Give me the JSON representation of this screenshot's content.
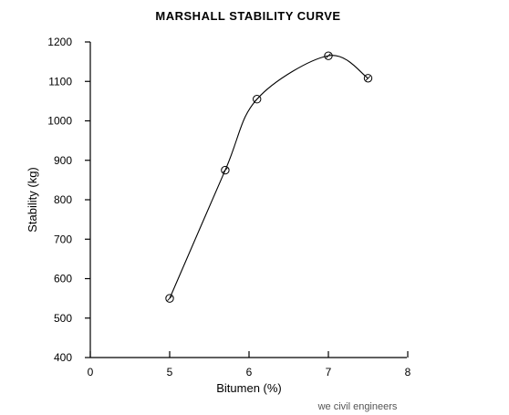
{
  "chart_data": {
    "type": "line",
    "title": "MARSHALL STABILITY CURVE",
    "xlabel": "Bitumen (%)",
    "ylabel": "Stability (kg)",
    "xlim": [
      4,
      8
    ],
    "ylim": [
      400,
      1200
    ],
    "x_ticks": [
      0,
      5,
      6,
      7,
      8
    ],
    "y_ticks": [
      400,
      500,
      600,
      700,
      800,
      900,
      1000,
      1100,
      1200
    ],
    "x_axis_break": true,
    "grid": false,
    "legend": "none",
    "series": [
      {
        "x": [
          5.0,
          5.7,
          6.1,
          7.0,
          7.5
        ],
        "y": [
          550,
          875,
          1055,
          1165,
          1108
        ],
        "marker": "circle",
        "smooth": true
      }
    ]
  },
  "watermark": "we civil engineers"
}
